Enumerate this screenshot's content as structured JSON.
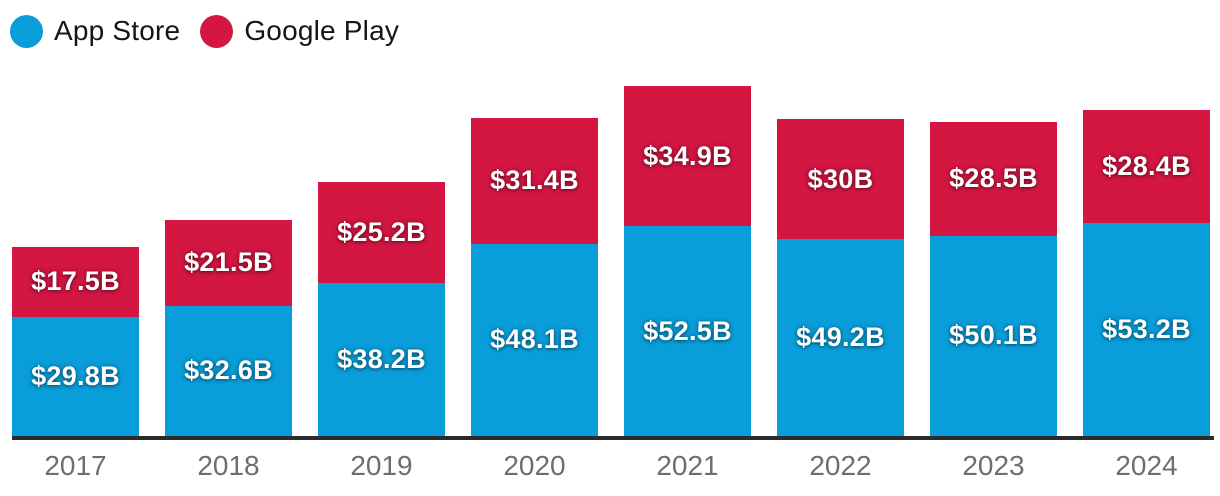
{
  "legend": {
    "items": [
      {
        "label": "App Store",
        "color": "#099EDA"
      },
      {
        "label": "Google Play",
        "color": "#D31642"
      }
    ]
  },
  "chart_data": {
    "type": "bar",
    "stacked": true,
    "title": "",
    "categories": [
      "2017",
      "2018",
      "2019",
      "2020",
      "2021",
      "2022",
      "2023",
      "2024"
    ],
    "series": [
      {
        "name": "App Store",
        "color": "#099EDA",
        "values": [
          29.8,
          32.6,
          38.2,
          48.1,
          52.5,
          49.2,
          50.1,
          53.2
        ],
        "labels": [
          "$29.8B",
          "$32.6B",
          "$38.2B",
          "$48.1B",
          "$52.5B",
          "$49.2B",
          "$50.1B",
          "$53.2B"
        ]
      },
      {
        "name": "Google Play",
        "color": "#D31642",
        "values": [
          17.5,
          21.5,
          25.2,
          31.4,
          34.9,
          30,
          28.5,
          28.4
        ],
        "labels": [
          "$17.5B",
          "$21.5B",
          "$25.2B",
          "$31.4B",
          "$34.9B",
          "$30B",
          "$28.5B",
          "$28.4B"
        ]
      }
    ],
    "value_unit": "USD billions",
    "xlabel": "",
    "ylabel": "",
    "ylim": [
      0,
      87.4
    ],
    "grid": false,
    "legend_position": "top-left",
    "axis_line_color": "#2b2b2b",
    "tick_label_color": "#6e6e6e",
    "value_label_color": "#ffffff"
  }
}
